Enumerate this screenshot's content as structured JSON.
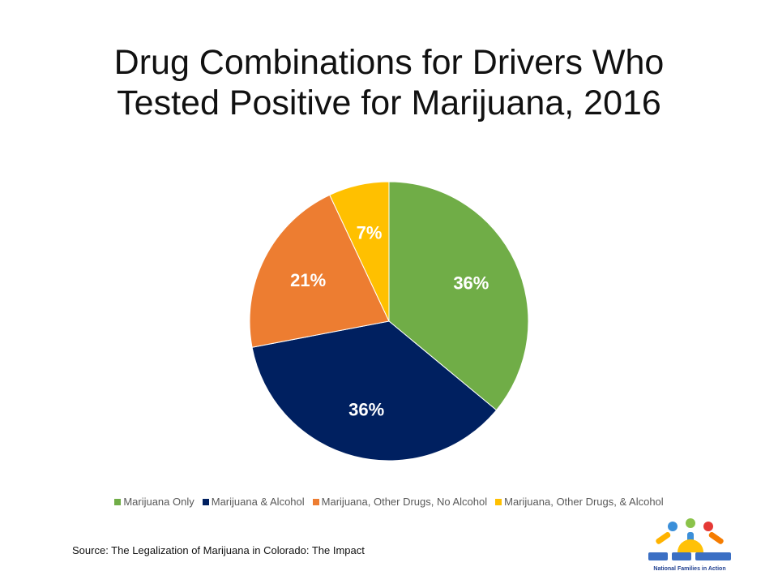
{
  "title_line1": "Drug Combinations for Drivers Who",
  "title_line2": "Tested Positive for Marijuana, 2016",
  "source": "Source: The Legalization of Marijuana in Colorado: The Impact",
  "logo_text": "National Families in Action",
  "chart_data": {
    "type": "pie",
    "title": "Drug Combinations for Drivers Who Tested Positive for Marijuana, 2016",
    "slices": [
      {
        "label": "Marijuana Only",
        "value": 36,
        "display": "36%",
        "color": "#70ad47"
      },
      {
        "label": "Marijuana & Alcohol",
        "value": 36,
        "display": "36%",
        "color": "#002060"
      },
      {
        "label": "Marijuana, Other Drugs, No Alcohol",
        "value": 21,
        "display": "21%",
        "color": "#ed7d31"
      },
      {
        "label": "Marijuana, Other Drugs, & Alcohol",
        "value": 7,
        "display": "7%",
        "color": "#ffc000"
      }
    ],
    "legend_position": "bottom",
    "start_angle": "12 o'clock, clockwise"
  }
}
